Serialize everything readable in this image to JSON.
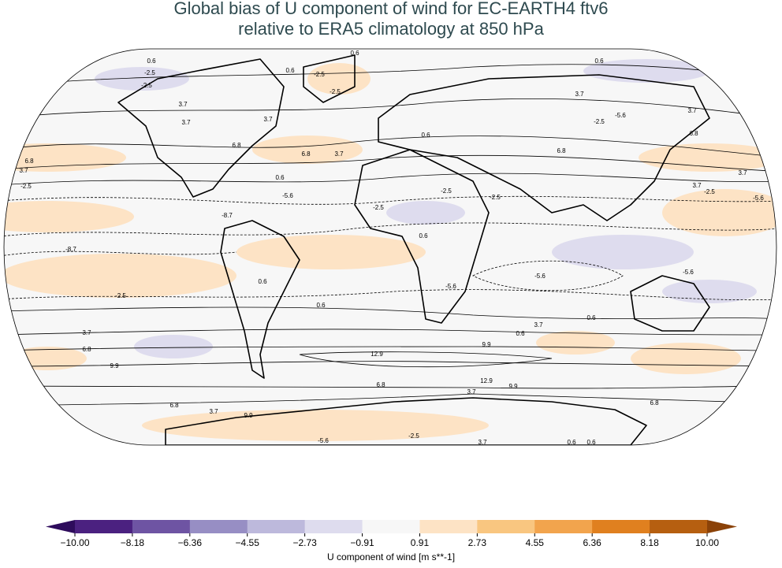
{
  "title": [
    "Global bias of U component of wind for EC-EARTH4 ftv6",
    "relative to ERA5 climatology at 850 hPa"
  ],
  "colorbar": {
    "label": "U component of wind [m s**-1]",
    "ticks": [
      {
        "value": -10,
        "label": "−10.00"
      },
      {
        "value": -8.18,
        "label": "−8.18"
      },
      {
        "value": -6.36,
        "label": "−6.36"
      },
      {
        "value": -4.55,
        "label": "−4.55"
      },
      {
        "value": -2.73,
        "label": "−2.73"
      },
      {
        "value": -0.91,
        "label": "−0.91"
      },
      {
        "value": 0.91,
        "label": "0.91"
      },
      {
        "value": 2.73,
        "label": "2.73"
      },
      {
        "value": 4.55,
        "label": "4.55"
      },
      {
        "value": 6.36,
        "label": "6.36"
      },
      {
        "value": 8.18,
        "label": "8.18"
      },
      {
        "value": 10,
        "label": "10.00"
      }
    ],
    "colors": [
      "#4b2180",
      "#6e54a3",
      "#978ec4",
      "#bdb9dc",
      "#dedcee",
      "#f7f7f7",
      "#fde3c5",
      "#f9c680",
      "#f2a44d",
      "#e0801f",
      "#b65f10"
    ],
    "under_color": "#2e0c5c",
    "over_color": "#8b4208"
  },
  "contour_labels": [
    "0.6",
    "-2.5",
    "-2.5",
    "0.6",
    "-2.5",
    "-2.5",
    "0.6",
    "3.7",
    "3.7",
    "3.7",
    "6.8",
    "6.8",
    "3.7",
    "0.6",
    "6.8",
    "3.7",
    "9.9",
    "6.8",
    "3.7",
    "-2.5",
    "0.6",
    "-5.6",
    "-8.7",
    "-2.5",
    "-2.5",
    "-2.5",
    "0.6",
    "-5.6",
    "-8.7",
    "0.6",
    "-2.5",
    "-5.6",
    "0.6",
    "3.7",
    "0.6",
    "-5.6",
    "0.6",
    "3.7",
    "6.8",
    "9.9",
    "12.9",
    "9.9",
    "12.9",
    "9.9",
    "6.8",
    "3.7",
    "6.8",
    "3.7",
    "9.9",
    "6.8",
    "3.7",
    "0.6",
    "-2.5",
    "-5.6",
    "3.7",
    "3.7",
    "-2.5",
    "-5.6",
    "0.6",
    "6.8",
    "3.7",
    "0.6",
    "-2.5",
    "-5.6"
  ]
}
